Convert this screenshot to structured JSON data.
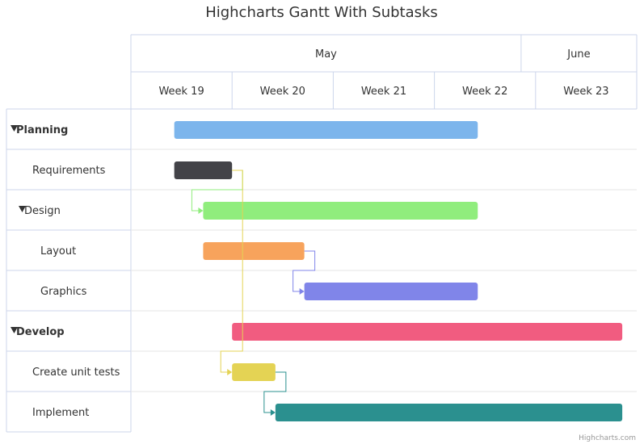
{
  "chart_data": {
    "type": "gantt",
    "title": "Highcharts Gantt With Subtasks",
    "months": [
      {
        "label": "May",
        "start": "2014-05-05",
        "end": "2014-06-01"
      },
      {
        "label": "June",
        "start": "2014-06-01",
        "end": "2014-06-09"
      }
    ],
    "weeks": [
      {
        "label": "Week 19",
        "start": "2014-05-05"
      },
      {
        "label": "Week 20",
        "start": "2014-05-12"
      },
      {
        "label": "Week 21",
        "start": "2014-05-19"
      },
      {
        "label": "Week 22",
        "start": "2014-05-26"
      },
      {
        "label": "Week 23",
        "start": "2014-06-02"
      }
    ],
    "x_range": [
      "2014-05-05",
      "2014-06-09"
    ],
    "tasks": [
      {
        "id": "planning",
        "name": "Planning",
        "level": 0,
        "collapsible": true,
        "start": "2014-05-08",
        "end": "2014-05-29",
        "color": "#7cb5ec"
      },
      {
        "id": "requirements",
        "name": "Requirements",
        "level": 1,
        "start": "2014-05-08",
        "end": "2014-05-12",
        "color": "#434348"
      },
      {
        "id": "design",
        "name": "Design",
        "level": 1,
        "collapsible": true,
        "start": "2014-05-10",
        "end": "2014-05-29",
        "color": "#90ed7d"
      },
      {
        "id": "layout",
        "name": "Layout",
        "level": 2,
        "start": "2014-05-10",
        "end": "2014-05-17",
        "color": "#f7a35c"
      },
      {
        "id": "graphics",
        "name": "Graphics",
        "level": 2,
        "start": "2014-05-17",
        "end": "2014-05-29",
        "color": "#8085e9"
      },
      {
        "id": "develop",
        "name": "Develop",
        "level": 0,
        "collapsible": true,
        "start": "2014-05-12",
        "end": "2014-06-08",
        "color": "#f15c80"
      },
      {
        "id": "unit-tests",
        "name": "Create unit tests",
        "level": 1,
        "start": "2014-05-12",
        "end": "2014-05-15",
        "color": "#e4d354"
      },
      {
        "id": "implement",
        "name": "Implement",
        "level": 1,
        "start": "2014-05-15",
        "end": "2014-06-08",
        "color": "#2b908f"
      }
    ],
    "dependencies": [
      {
        "from": "requirements",
        "to": "design",
        "color": "#90ed7d"
      },
      {
        "from": "requirements",
        "to": "unit-tests",
        "color": "#e4d354"
      },
      {
        "from": "layout",
        "to": "graphics",
        "color": "#8085e9"
      },
      {
        "from": "unit-tests",
        "to": "implement",
        "color": "#2b908f"
      }
    ],
    "credit": "Highcharts.com"
  }
}
